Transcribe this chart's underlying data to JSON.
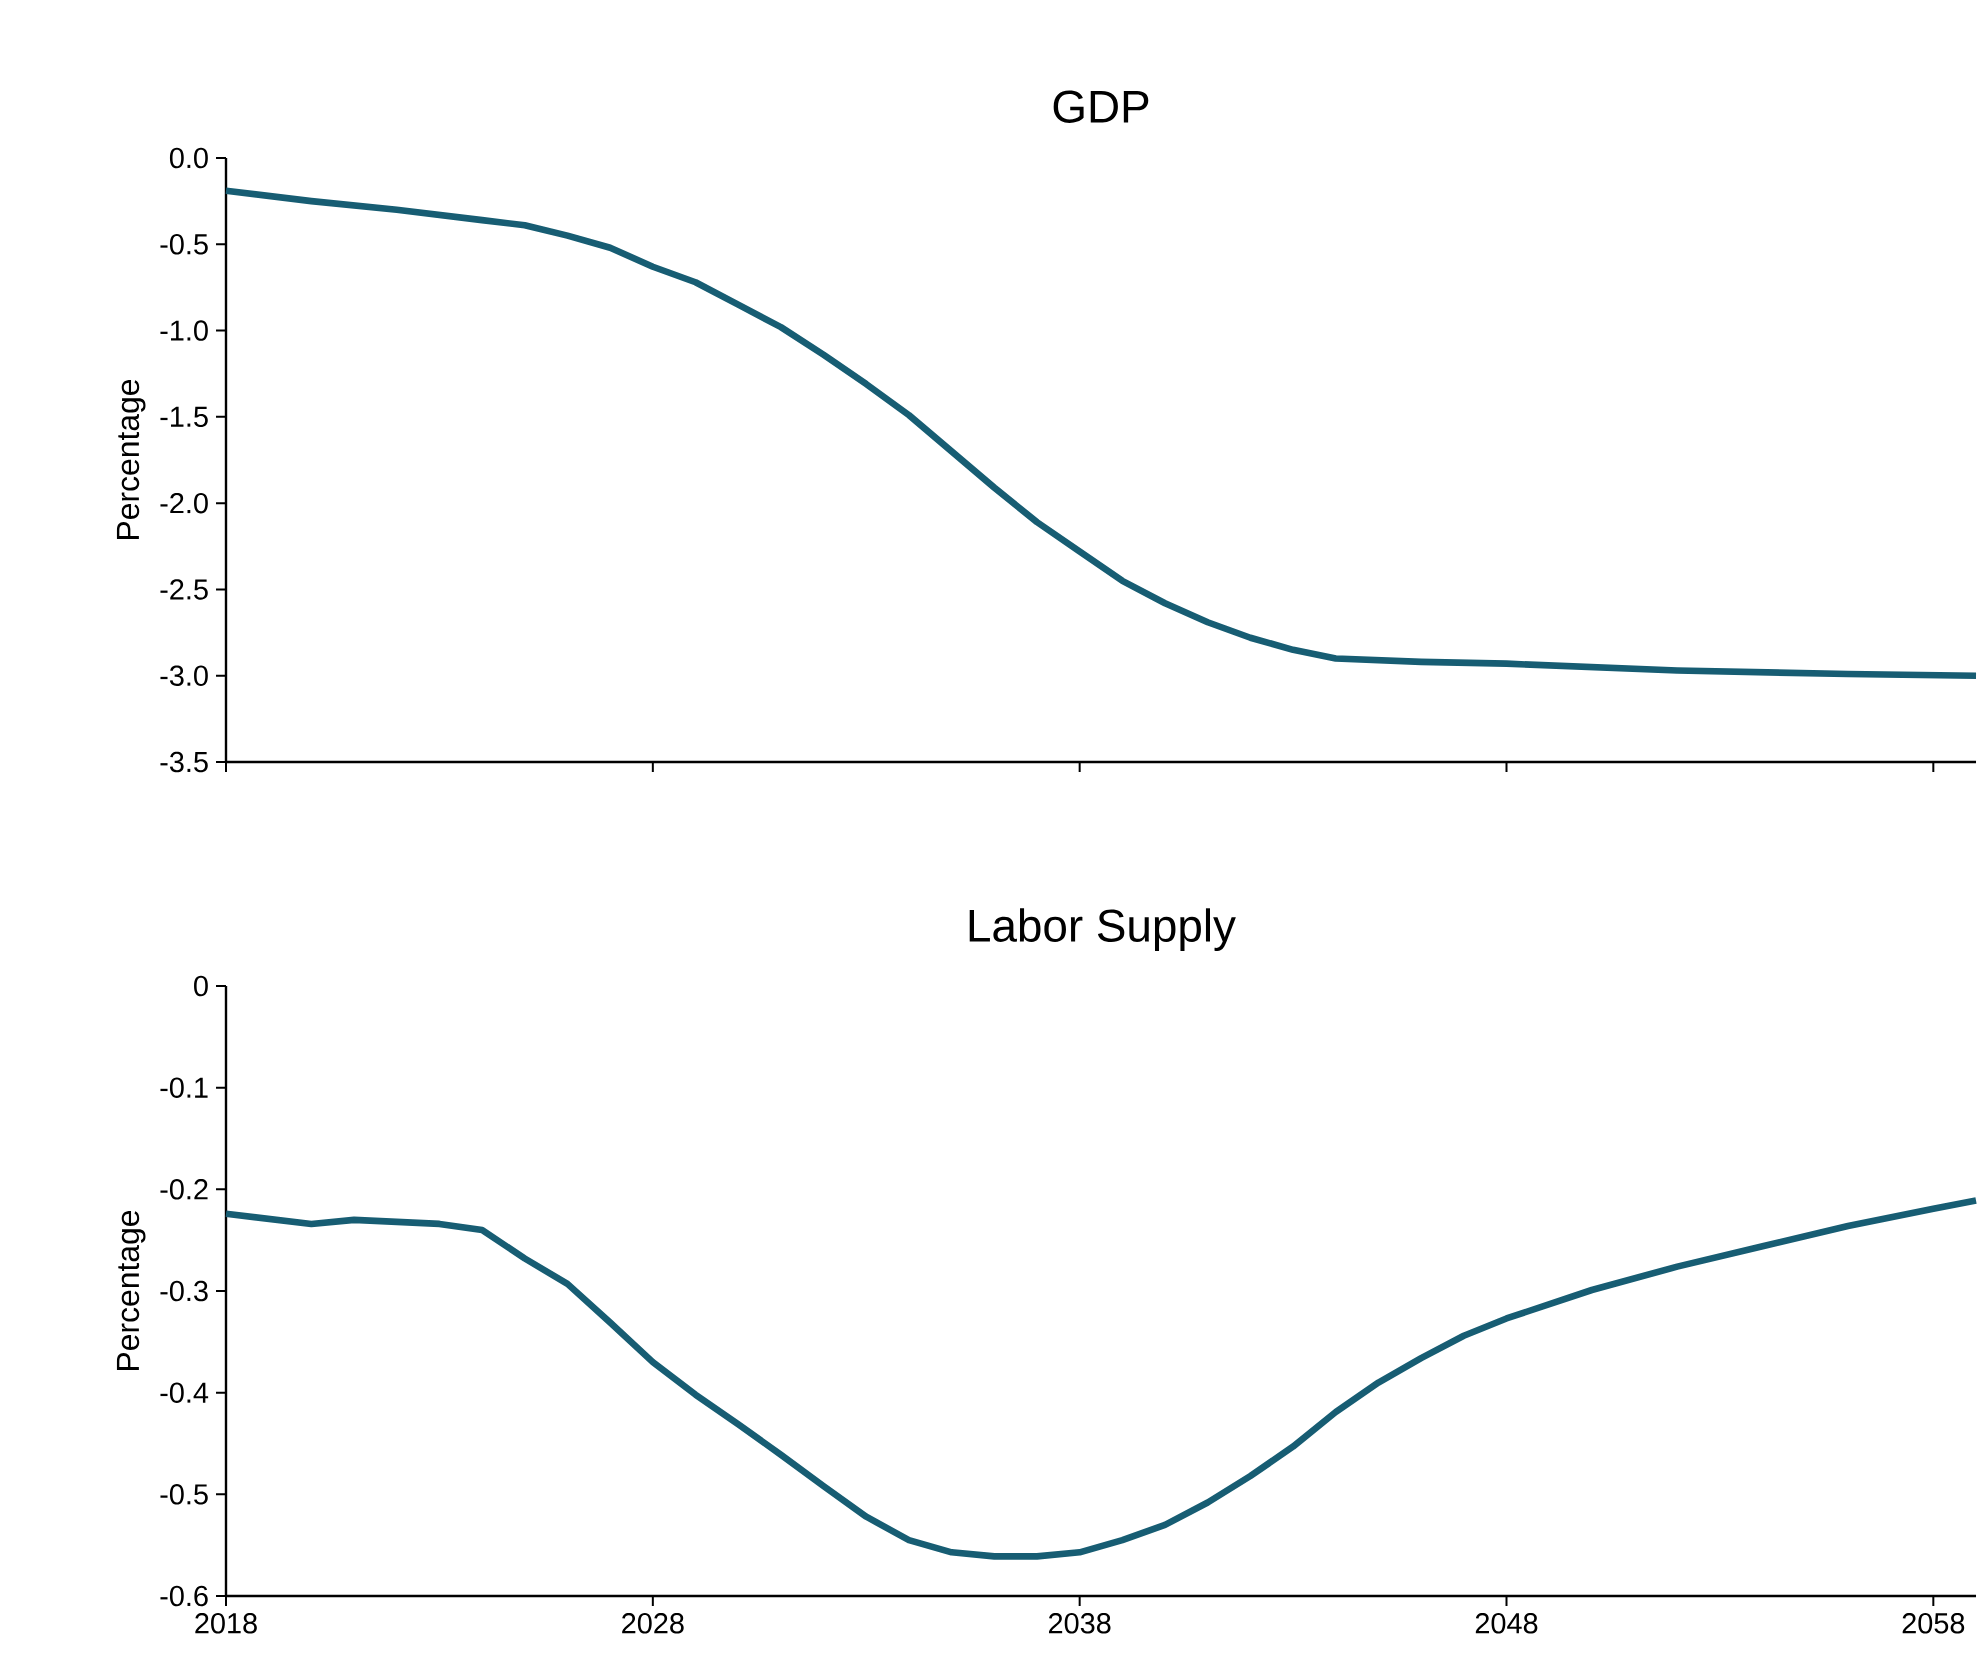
{
  "chart_data": [
    {
      "type": "line",
      "title": "GDP",
      "ylabel": "Percentage",
      "tick_labels": "y",
      "color": "#175d73",
      "x": [
        2018,
        2020,
        2022,
        2024,
        2025,
        2026,
        2027,
        2028,
        2029,
        2030,
        2031,
        2032,
        2033,
        2034,
        2035,
        2036,
        2037,
        2038,
        2039,
        2040,
        2041,
        2042,
        2043,
        2044,
        2046,
        2048,
        2052,
        2056,
        2059
      ],
      "values": [
        -0.19,
        -0.25,
        -0.3,
        -0.36,
        -0.39,
        -0.45,
        -0.52,
        -0.63,
        -0.72,
        -0.85,
        -0.98,
        -1.14,
        -1.31,
        -1.49,
        -1.7,
        -1.91,
        -2.11,
        -2.28,
        -2.45,
        -2.58,
        -2.69,
        -2.78,
        -2.85,
        -2.9,
        -2.92,
        -2.93,
        -2.97,
        -2.99,
        -3.0
      ],
      "xlim": [
        2018,
        2059
      ],
      "xticks": [
        2018,
        2028,
        2038,
        2048,
        2058
      ],
      "ylim": [
        -3.5,
        0
      ],
      "yticks": [
        {
          "value": 0,
          "label": "0.0"
        },
        -0.5,
        {
          "value": -1,
          "label": "-1.0"
        },
        -1.5,
        {
          "value": -2,
          "label": "-2.0"
        },
        -2.5,
        {
          "value": -3,
          "label": "-3.0"
        },
        -3.5
      ]
    },
    {
      "type": "line",
      "title": "Labor Supply",
      "ylabel": "Percentage",
      "color": "#175d73",
      "x": [
        2018,
        2020,
        2021,
        2023,
        2024,
        2025,
        2026,
        2027,
        2028,
        2029,
        2030,
        2031,
        2032,
        2033,
        2034,
        2035,
        2036,
        2037,
        2038,
        2039,
        2040,
        2041,
        2042,
        2043,
        2044,
        2045,
        2046,
        2047,
        2048,
        2050,
        2052,
        2054,
        2056,
        2058,
        2059
      ],
      "values": [
        -0.224,
        -0.234,
        -0.23,
        -0.234,
        -0.24,
        -0.268,
        -0.293,
        -0.331,
        -0.37,
        -0.402,
        -0.431,
        -0.461,
        -0.492,
        -0.522,
        -0.545,
        -0.557,
        -0.561,
        -0.561,
        -0.557,
        -0.545,
        -0.53,
        -0.508,
        -0.482,
        -0.453,
        -0.419,
        -0.39,
        -0.366,
        -0.344,
        -0.327,
        -0.299,
        -0.276,
        -0.256,
        -0.236,
        -0.219,
        -0.211
      ],
      "xlim": [
        2018,
        2059
      ],
      "xticks": [
        2018,
        2028,
        2038,
        2048,
        2058
      ],
      "ylim": [
        -0.6,
        0
      ],
      "yticks": [
        0,
        -0.1,
        -0.2,
        -0.3,
        -0.4,
        -0.5,
        -0.6
      ]
    }
  ]
}
